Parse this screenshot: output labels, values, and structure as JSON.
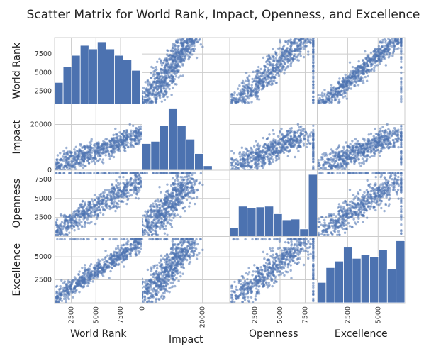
{
  "chart_data": {
    "type": "scatter",
    "title": "Scatter Matrix for World Rank, Impact, Openness, and Excellence",
    "variables": [
      "World Rank",
      "Impact",
      "Openness",
      "Excellence"
    ],
    "axis_ranges": {
      "World Rank": [
        800,
        9700
      ],
      "Impact": [
        0,
        29000
      ],
      "Openness": [
        0,
        8700
      ],
      "Excellence": [
        0,
        7200
      ]
    },
    "ticks": {
      "World Rank": [
        2500,
        5000,
        7500
      ],
      "Impact": [
        0,
        20000
      ],
      "Openness": [
        2500,
        5000,
        7500
      ],
      "Excellence": [
        2500,
        5000
      ]
    },
    "diagonal_histograms": [
      {
        "variable": "World Rank",
        "bins": 10,
        "range": [
          800,
          9500
        ],
        "counts": [
          30,
          52,
          68,
          82,
          77,
          87,
          77,
          68,
          62,
          47
        ]
      },
      {
        "variable": "Impact",
        "bins": 10,
        "range": [
          0,
          29000
        ],
        "counts": [
          120,
          130,
          200,
          280,
          200,
          140,
          75,
          20,
          0,
          0
        ]
      },
      {
        "variable": "Openness",
        "bins": 10,
        "range": [
          0,
          8700
        ],
        "counts": [
          12,
          40,
          38,
          39,
          40,
          30,
          22,
          23,
          10,
          82
        ]
      },
      {
        "variable": "Excellence",
        "bins": 10,
        "range": [
          0,
          7200
        ],
        "counts": [
          22,
          38,
          45,
          60,
          48,
          52,
          50,
          57,
          37,
          67
        ]
      }
    ],
    "grid": true,
    "marker_color": "#4c72b0",
    "bar_color": "#4c72b0"
  }
}
